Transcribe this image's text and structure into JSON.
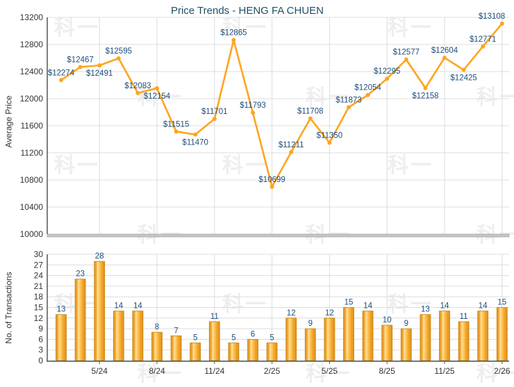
{
  "page": {
    "title": "Price Trends - HENG FA CHUEN",
    "watermark_text": "科一"
  },
  "colors": {
    "line": "#FFA41D",
    "bar_fill": "#F5A623",
    "bar_border": "#C8860F",
    "point_label": "#1F4E79",
    "title": "#1D4F63",
    "axis_text": "#333333",
    "grid": "#DCDCDC",
    "axis_line": "#55565A",
    "base_band": "#C6C6C6"
  },
  "chart_data": [
    {
      "type": "line",
      "title": "Price Trends - HENG FA CHUEN",
      "ylabel": "Average Price",
      "ylim": [
        10000,
        13200
      ],
      "ytick_step": 400,
      "yticks": [
        10000,
        10400,
        10800,
        11200,
        11600,
        12000,
        12400,
        12800,
        13200
      ],
      "n_points": 24,
      "x_labels": [
        "5/24",
        "8/24",
        "11/24",
        "2/25",
        "5/25",
        "8/25",
        "11/25",
        "2/26"
      ],
      "x_label_indices": [
        2,
        5,
        8,
        11,
        14,
        17,
        20,
        23
      ],
      "values": [
        12274,
        12467,
        12491,
        12595,
        12083,
        12154,
        11515,
        11470,
        11701,
        12865,
        11793,
        10699,
        11211,
        11708,
        11350,
        11873,
        12054,
        12295,
        12577,
        12158,
        12604,
        12425,
        12771,
        13108
      ],
      "point_labels": [
        "$12274",
        "$12467",
        "$12491",
        "$12595",
        "$12083",
        "$12154",
        "$11515",
        "$11470",
        "$11701",
        "$12865",
        "$11793",
        "$10699",
        "$11211",
        "$11708",
        "$11350",
        "$11873",
        "$12054",
        "$12295",
        "$12577",
        "$12158",
        "$12604",
        "$12425",
        "$12771",
        "$13108"
      ],
      "label_side": [
        "above",
        "above",
        "below",
        "above",
        "above",
        "below",
        "above",
        "below",
        "above",
        "above",
        "above",
        "above",
        "above",
        "above",
        "above",
        "above",
        "above",
        "above",
        "above",
        "below",
        "above",
        "below",
        "above",
        "above"
      ],
      "grid": true,
      "legend": "none",
      "line_color": "#FFA41D"
    },
    {
      "type": "bar",
      "ylabel": "No. of Transactions",
      "ylim": [
        0,
        30
      ],
      "ytick_step": 3,
      "yticks": [
        0,
        3,
        6,
        9,
        12,
        15,
        18,
        21,
        24,
        27,
        30
      ],
      "x_labels": [
        "5/24",
        "8/24",
        "11/24",
        "2/25",
        "5/25",
        "8/25",
        "11/25",
        "2/26"
      ],
      "x_label_indices": [
        2,
        5,
        8,
        11,
        14,
        17,
        20,
        23
      ],
      "values": [
        13,
        23,
        28,
        14,
        14,
        8,
        7,
        5,
        11,
        5,
        6,
        5,
        12,
        9,
        12,
        15,
        14,
        10,
        9,
        13,
        14,
        11,
        14,
        15
      ],
      "grid": true,
      "legend": "none",
      "bar_color": "#F5A623"
    }
  ]
}
